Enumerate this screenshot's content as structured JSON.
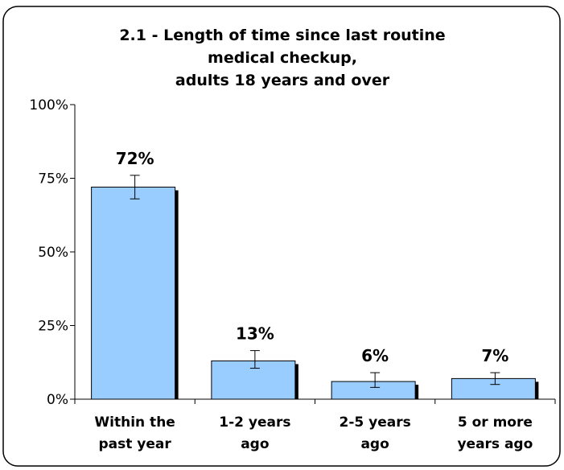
{
  "chart_data": {
    "type": "bar",
    "title_lines": [
      "2.1 - Length of time since last routine",
      "medical checkup,",
      "adults 18 years and over"
    ],
    "categories": [
      [
        "Within the",
        "past year"
      ],
      [
        "1-2 years",
        "ago"
      ],
      [
        "2-5 years",
        "ago"
      ],
      [
        "5 or more",
        "years ago"
      ]
    ],
    "values": [
      72,
      13,
      6,
      7
    ],
    "value_labels": [
      "72%",
      "13%",
      "6%",
      "7%"
    ],
    "error_bars": [
      [
        68,
        76
      ],
      [
        10.5,
        16.5
      ],
      [
        4,
        9
      ],
      [
        5,
        9
      ]
    ],
    "yticks": [
      0,
      25,
      50,
      75,
      100
    ],
    "ytick_labels": [
      "0%",
      "25%",
      "50%",
      "75%",
      "100%"
    ],
    "ylim": [
      0,
      100
    ],
    "xlabel": "",
    "ylabel": "",
    "grid": false,
    "legend": "none",
    "colors": {
      "bar_fill": "#99ccff",
      "bar_shadow": "#000000",
      "bar_stroke": "#000000",
      "axis": "#000000",
      "text": "#000000",
      "frame": "#000000"
    }
  }
}
